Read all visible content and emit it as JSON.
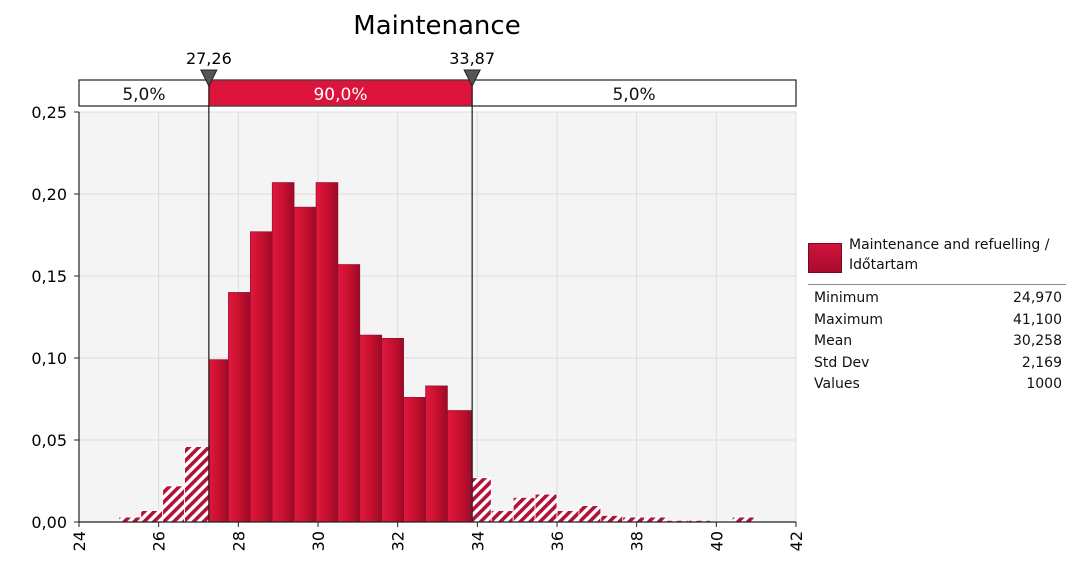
{
  "chart_data": {
    "type": "bar",
    "title": "Maintenance",
    "xlabel": "",
    "ylabel": "",
    "xlim": [
      24,
      42
    ],
    "ylim": [
      0,
      0.25
    ],
    "x_ticks": [
      "24",
      "26",
      "28",
      "30",
      "32",
      "34",
      "36",
      "38",
      "40",
      "42"
    ],
    "y_ticks": [
      "0,00",
      "0,05",
      "0,10",
      "0,15",
      "0,20",
      "0,25"
    ],
    "grid": true,
    "color": "#c8102e",
    "series": [
      {
        "name": "Maintenance and refuelling / Időtartam",
        "bins": [
          {
            "x0": 25.0,
            "x1": 25.55,
            "y": 0.003
          },
          {
            "x0": 25.55,
            "x1": 26.1,
            "y": 0.007
          },
          {
            "x0": 26.1,
            "x1": 26.65,
            "y": 0.022
          },
          {
            "x0": 26.65,
            "x1": 27.26,
            "y": 0.046
          },
          {
            "x0": 27.26,
            "x1": 27.75,
            "y": 0.099
          },
          {
            "x0": 27.75,
            "x1": 28.3,
            "y": 0.14
          },
          {
            "x0": 28.3,
            "x1": 28.85,
            "y": 0.177
          },
          {
            "x0": 28.85,
            "x1": 29.4,
            "y": 0.207
          },
          {
            "x0": 29.4,
            "x1": 29.95,
            "y": 0.192
          },
          {
            "x0": 29.95,
            "x1": 30.5,
            "y": 0.207
          },
          {
            "x0": 30.5,
            "x1": 31.05,
            "y": 0.157
          },
          {
            "x0": 31.05,
            "x1": 31.6,
            "y": 0.114
          },
          {
            "x0": 31.6,
            "x1": 32.15,
            "y": 0.112
          },
          {
            "x0": 32.15,
            "x1": 32.7,
            "y": 0.076
          },
          {
            "x0": 32.7,
            "x1": 33.25,
            "y": 0.083
          },
          {
            "x0": 33.25,
            "x1": 33.87,
            "y": 0.068
          },
          {
            "x0": 33.87,
            "x1": 34.35,
            "y": 0.027
          },
          {
            "x0": 34.35,
            "x1": 34.9,
            "y": 0.007
          },
          {
            "x0": 34.9,
            "x1": 35.45,
            "y": 0.015
          },
          {
            "x0": 35.45,
            "x1": 36.0,
            "y": 0.017
          },
          {
            "x0": 36.0,
            "x1": 36.55,
            "y": 0.007
          },
          {
            "x0": 36.55,
            "x1": 37.1,
            "y": 0.01
          },
          {
            "x0": 37.1,
            "x1": 37.65,
            "y": 0.004
          },
          {
            "x0": 37.65,
            "x1": 38.2,
            "y": 0.003
          },
          {
            "x0": 38.2,
            "x1": 38.75,
            "y": 0.003
          },
          {
            "x0": 38.75,
            "x1": 39.3,
            "y": 0.001
          },
          {
            "x0": 39.3,
            "x1": 39.85,
            "y": 0.001
          },
          {
            "x0": 39.85,
            "x1": 40.4,
            "y": 0.0005
          },
          {
            "x0": 40.4,
            "x1": 40.95,
            "y": 0.003
          }
        ]
      }
    ],
    "markers": [
      {
        "x": 27.26,
        "label": "27,26"
      },
      {
        "x": 33.87,
        "label": "33,87"
      }
    ],
    "bands": [
      {
        "label": "5,0%",
        "highlight": false
      },
      {
        "label": "90,0%",
        "highlight": true
      },
      {
        "label": "5,0%",
        "highlight": false
      }
    ]
  },
  "legend": {
    "name": "Maintenance and refuelling / Időtartam",
    "stats": [
      {
        "label": "Minimum",
        "value": "24,970"
      },
      {
        "label": "Maximum",
        "value": "41,100"
      },
      {
        "label": "Mean",
        "value": "30,258"
      },
      {
        "label": "Std Dev",
        "value": "2,169"
      },
      {
        "label": "Values",
        "value": "1000"
      }
    ]
  }
}
